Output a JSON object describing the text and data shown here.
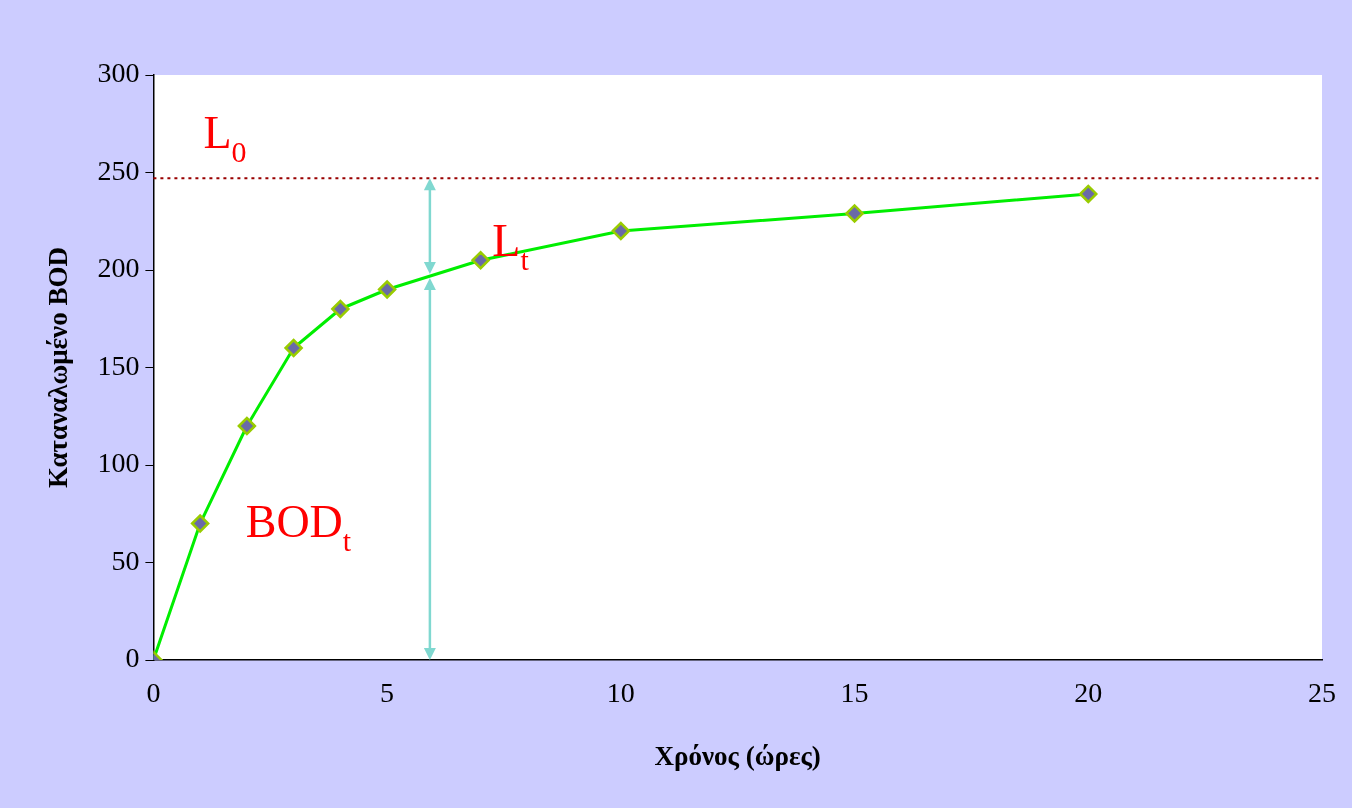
{
  "chart_data": {
    "type": "line",
    "xlabel": "Χρόνος (ώρες)",
    "ylabel": "Καταναλωμένο BOD",
    "x": [
      0,
      1,
      2,
      3,
      4,
      5,
      7,
      10,
      15,
      20
    ],
    "series": [
      {
        "color": "#00ee00",
        "values": [
          0,
          70,
          120,
          160,
          180,
          190,
          205,
          220,
          229,
          239
        ]
      }
    ],
    "xlim": [
      0,
      25
    ],
    "xticks": [
      0,
      5,
      10,
      15,
      20,
      25
    ],
    "ylim": [
      0,
      300
    ],
    "yticks": [
      0,
      50,
      100,
      150,
      200,
      250,
      300
    ],
    "grid": false,
    "legend": false,
    "marker": "diamond",
    "line_style": "solid",
    "ref_lines": [
      {
        "axis": "y",
        "value": 247,
        "label": "L$_{0}$",
        "color": "#990000",
        "line_style": "dotted"
      }
    ],
    "annotations": [
      "L$_{t}$",
      "BOD$_{t}$"
    ]
  }
}
